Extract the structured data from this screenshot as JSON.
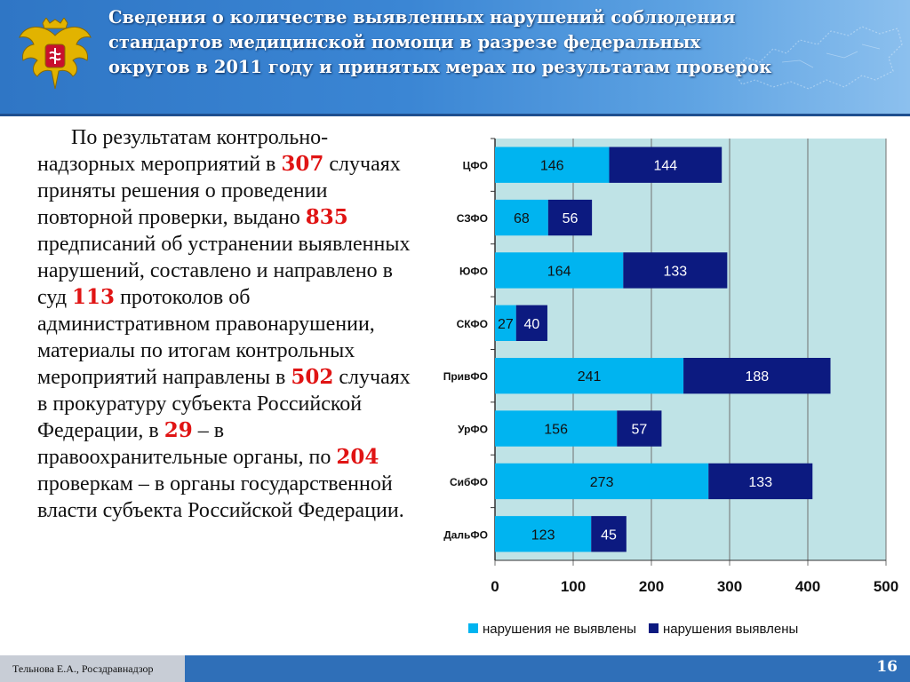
{
  "header": {
    "title": "Сведения о количестве выявленных нарушений соблюдения стандартов медицинской помощи в разрезе федеральных округов в 2011 году и принятых мерах по результатам проверок"
  },
  "body": {
    "t1": "По результатам контрольно-надзорных мероприятий в ",
    "n1": "307",
    "t2": " случаях приняты решения о проведении повторной проверки, выдано ",
    "n2": "835",
    "t3": " предписаний об устранении выявленных нарушений, составлено и направлено в суд ",
    "n3": "113",
    "t4": " протоколов об административном правонарушении, материалы по итогам контрольных мероприятий направлены в ",
    "n4": "502",
    "t5": " случаях в прокуратуру субъекта Российской Федерации, в ",
    "n5": "29",
    "t6": " – в правоохранительные органы, по ",
    "n6": "204",
    "t7": " проверкам – в органы государственной власти субъекта Российской Федерации."
  },
  "colors": {
    "header_bg": "#3b86d4",
    "highlight": "#e01414",
    "plot_bg": "#bfe3e6",
    "series_1": "#00b4f0",
    "series_2": "#0c1a80"
  },
  "chart_data": {
    "type": "bar",
    "orientation": "horizontal",
    "stacked": true,
    "categories": [
      "ЦФО",
      "СЗФО",
      "ЮФО",
      "СКФО",
      "ПривФО",
      "УрФО",
      "СибФО",
      "ДальФО"
    ],
    "series": [
      {
        "name": "нарушения не выявлены",
        "values": [
          146,
          68,
          164,
          27,
          241,
          156,
          273,
          123
        ]
      },
      {
        "name": "нарушения выявлены",
        "values": [
          144,
          56,
          133,
          40,
          188,
          57,
          133,
          45
        ]
      }
    ],
    "xlim": [
      0,
      500
    ],
    "xticks": [
      0,
      100,
      200,
      300,
      400,
      500
    ],
    "grid": true,
    "legend": "bottom"
  },
  "footer": {
    "author": "Тельнова Е.А., Росздравнадзор",
    "page": "16"
  }
}
